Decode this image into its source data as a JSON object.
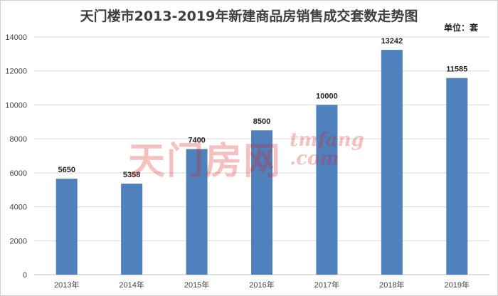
{
  "chart_data": {
    "type": "bar",
    "title": "天门楼市2013-2019年新建商品房销售成交套数走势图",
    "unit_label": "单位：套",
    "categories": [
      "2013年",
      "2014年",
      "2015年",
      "2016年",
      "2017年",
      "2018年",
      "2019年"
    ],
    "values": [
      5650,
      5358,
      7400,
      8500,
      10000,
      13242,
      11585
    ],
    "data_labels": [
      "5650",
      "5358",
      "7400",
      "8500",
      "10000",
      "13242",
      "11585"
    ],
    "y_ticks": [
      0,
      2000,
      4000,
      6000,
      8000,
      10000,
      12000,
      14000
    ],
    "ylim": [
      0,
      14000
    ],
    "xlabel": "",
    "ylabel": "",
    "grid": true,
    "bar_color": "#4f81bd",
    "grid_color": "#d9d9d9"
  },
  "watermark": {
    "brand_cn": "天门房网",
    "brand_en_top": "tmfang",
    "brand_en_bottom": ".com",
    "color": "#e02020"
  }
}
